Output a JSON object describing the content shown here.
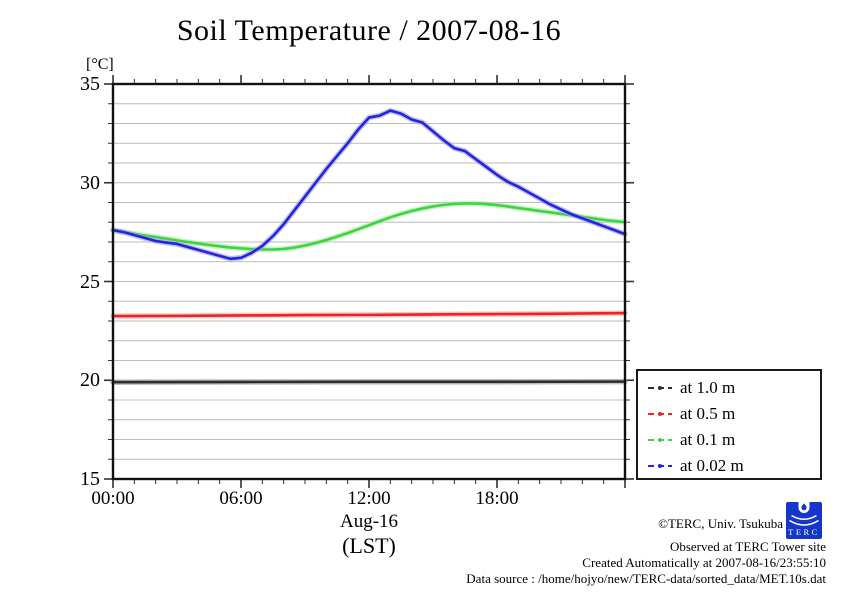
{
  "title": "Soil Temperature / 2007-08-16",
  "y_axis": {
    "unit_label": "[°C]",
    "ticks": [
      35,
      30,
      25,
      20,
      15
    ]
  },
  "x_axis": {
    "ticks": [
      {
        "hour": 0,
        "label": "00:00"
      },
      {
        "hour": 6,
        "label": "06:00"
      },
      {
        "hour": 12,
        "label": "12:00"
      },
      {
        "hour": 18,
        "label": "18:00"
      }
    ],
    "date_label": "Aug-16",
    "tz_label": "(LST)"
  },
  "legend": {
    "items": [
      {
        "label": "at 1.0 m",
        "color": "#2e2e2e"
      },
      {
        "label": "at 0.5 m",
        "color": "#ee2222"
      },
      {
        "label": "at 0.1 m",
        "color": "#3fd43f"
      },
      {
        "label": "at 0.02 m",
        "color": "#2424dd"
      }
    ]
  },
  "credits": {
    "copyright": "©TERC, Univ. Tsukuba",
    "observed": "Observed at TERC Tower site",
    "created": "Created Automatically at 2007-08-16/23:55:10",
    "datasource": "Data source : /home/hojyo/new/TERC-data/sorted_data/MET.10s.dat",
    "logo_text": "TERC",
    "logo_color": "#1536c8"
  },
  "chart_data": {
    "type": "line",
    "title": "Soil Temperature / 2007-08-16",
    "xlabel": "Aug-16 (LST)",
    "ylabel": "[°C]",
    "xlim": [
      0,
      24
    ],
    "ylim": [
      15,
      35
    ],
    "x_major_ticks_hours": [
      0,
      6,
      12,
      18,
      24
    ],
    "x_minor_tick_hours": 1,
    "y_minor_tick_deg": 1,
    "grid": "horizontal thin gray line every 1 °C",
    "legend_position": "outside right, lower half",
    "grid_color": "#bcbcbc",
    "frame_color": "#111111",
    "series": [
      {
        "name": "at 1.0 m",
        "depth_m": 1.0,
        "color": "#2e2e2e",
        "halo": "#9a9a9a",
        "x": [
          0,
          6,
          12,
          18,
          24
        ],
        "values": [
          19.9,
          19.91,
          19.92,
          19.92,
          19.93
        ]
      },
      {
        "name": "at 0.5 m",
        "depth_m": 0.5,
        "color": "#ee2222",
        "halo": "#f7a2a2",
        "x": [
          0,
          3,
          6,
          9,
          12,
          15,
          18,
          21,
          24
        ],
        "values": [
          23.25,
          23.26,
          23.28,
          23.3,
          23.31,
          23.33,
          23.35,
          23.37,
          23.4
        ]
      },
      {
        "name": "at 0.1 m",
        "depth_m": 0.1,
        "color": "#3fd43f",
        "halo": "#a4eea4",
        "x": [
          0,
          0.5,
          1,
          1.5,
          2,
          2.5,
          3,
          3.5,
          4,
          4.5,
          5,
          5.5,
          6,
          6.5,
          7,
          7.5,
          8,
          8.5,
          9,
          9.5,
          10,
          10.5,
          11,
          11.5,
          12,
          12.5,
          13,
          13.5,
          14,
          14.5,
          15,
          15.5,
          16,
          16.5,
          17,
          17.5,
          18,
          18.5,
          19,
          19.5,
          20,
          20.5,
          21,
          21.5,
          22,
          22.5,
          23,
          23.5,
          24
        ],
        "values": [
          27.6,
          27.5,
          27.42,
          27.33,
          27.25,
          27.17,
          27.08,
          27.0,
          26.92,
          26.85,
          26.78,
          26.72,
          26.68,
          26.64,
          26.62,
          26.62,
          26.65,
          26.72,
          26.82,
          26.95,
          27.1,
          27.27,
          27.45,
          27.65,
          27.85,
          28.05,
          28.25,
          28.42,
          28.57,
          28.7,
          28.8,
          28.88,
          28.93,
          28.95,
          28.95,
          28.92,
          28.87,
          28.8,
          28.72,
          28.65,
          28.57,
          28.5,
          28.42,
          28.35,
          28.27,
          28.2,
          28.12,
          28.06,
          28.0
        ]
      },
      {
        "name": "at 0.02 m",
        "depth_m": 0.02,
        "color": "#2424dd",
        "halo": "#9b9bef",
        "x": [
          0,
          0.5,
          1,
          1.5,
          2,
          2.5,
          3,
          3.5,
          4,
          4.5,
          5,
          5.5,
          6,
          6.5,
          7,
          7.5,
          8,
          8.5,
          9,
          9.5,
          10,
          10.5,
          11,
          11.5,
          12,
          12.5,
          13,
          13.5,
          14,
          14.5,
          15,
          15.5,
          16,
          16.5,
          17,
          17.5,
          18,
          18.5,
          19,
          19.5,
          20,
          20.5,
          21,
          21.5,
          22,
          22.5,
          23,
          23.5,
          24
        ],
        "values": [
          27.6,
          27.5,
          27.35,
          27.2,
          27.05,
          26.97,
          26.9,
          26.75,
          26.6,
          26.45,
          26.3,
          26.15,
          26.2,
          26.45,
          26.8,
          27.3,
          27.9,
          28.6,
          29.3,
          30.0,
          30.7,
          31.35,
          32.0,
          32.7,
          33.3,
          33.4,
          33.65,
          33.5,
          33.2,
          33.05,
          32.6,
          32.15,
          31.75,
          31.6,
          31.2,
          30.8,
          30.4,
          30.05,
          29.8,
          29.5,
          29.2,
          28.9,
          28.65,
          28.4,
          28.2,
          28.0,
          27.8,
          27.6,
          27.4
        ]
      }
    ]
  }
}
